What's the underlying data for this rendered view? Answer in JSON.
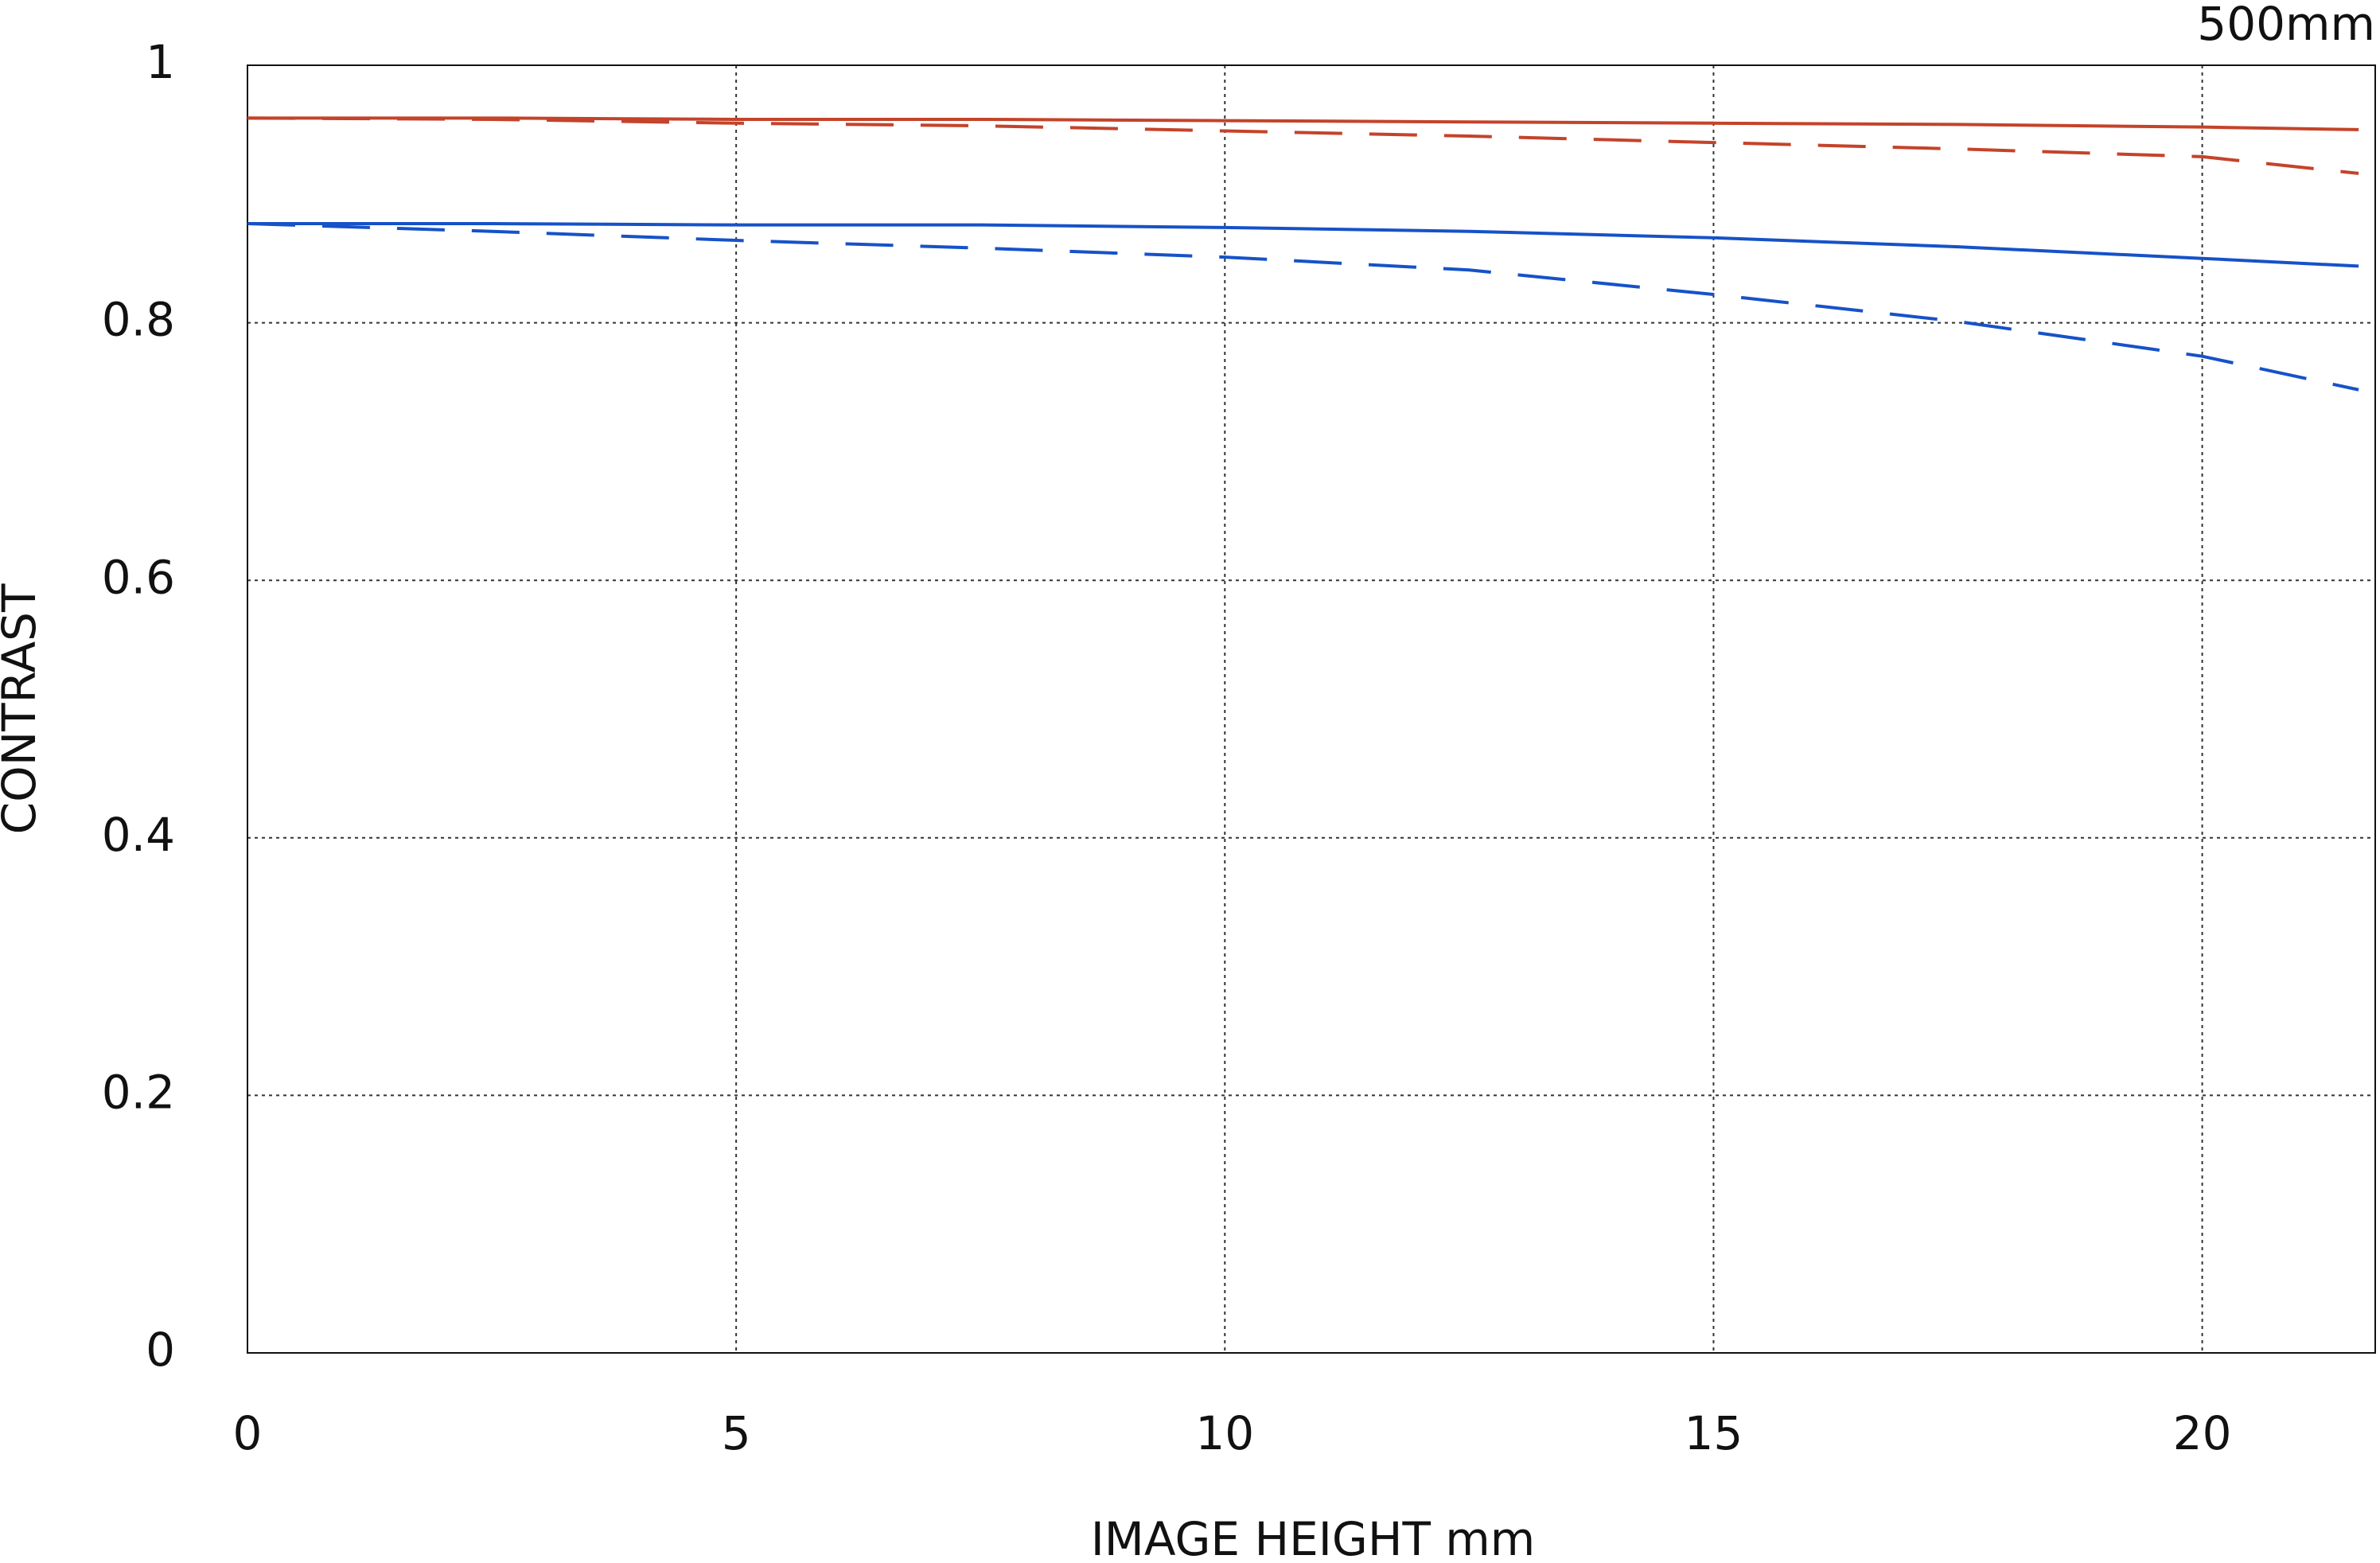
{
  "chart_data": {
    "type": "line",
    "annotation": "500mm",
    "xlabel": "IMAGE HEIGHT  mm",
    "ylabel": "CONTRAST",
    "x": [
      0,
      2.5,
      5,
      7.5,
      10,
      12.5,
      15,
      17.5,
      20,
      21.6
    ],
    "series": [
      {
        "color": "#c4432a",
        "dash": false,
        "values": [
          0.959,
          0.959,
          0.958,
          0.958,
          0.957,
          0.956,
          0.955,
          0.954,
          0.952,
          0.95
        ]
      },
      {
        "color": "#c4432a",
        "dash": true,
        "values": [
          0.959,
          0.958,
          0.955,
          0.953,
          0.949,
          0.945,
          0.94,
          0.935,
          0.929,
          0.916
        ]
      },
      {
        "color": "#1652c8",
        "dash": false,
        "values": [
          0.877,
          0.877,
          0.876,
          0.876,
          0.874,
          0.871,
          0.866,
          0.859,
          0.85,
          0.844
        ]
      },
      {
        "color": "#1652c8",
        "dash": true,
        "values": [
          0.877,
          0.871,
          0.864,
          0.858,
          0.851,
          0.841,
          0.822,
          0.801,
          0.774,
          0.748
        ]
      }
    ],
    "xlim": [
      0,
      21.77
    ],
    "xticks": [
      0,
      5,
      10,
      15,
      20
    ],
    "ylim": [
      0,
      1
    ],
    "yticks": [
      0,
      0.2,
      0.4,
      0.6,
      0.8,
      1
    ],
    "grid": true
  }
}
